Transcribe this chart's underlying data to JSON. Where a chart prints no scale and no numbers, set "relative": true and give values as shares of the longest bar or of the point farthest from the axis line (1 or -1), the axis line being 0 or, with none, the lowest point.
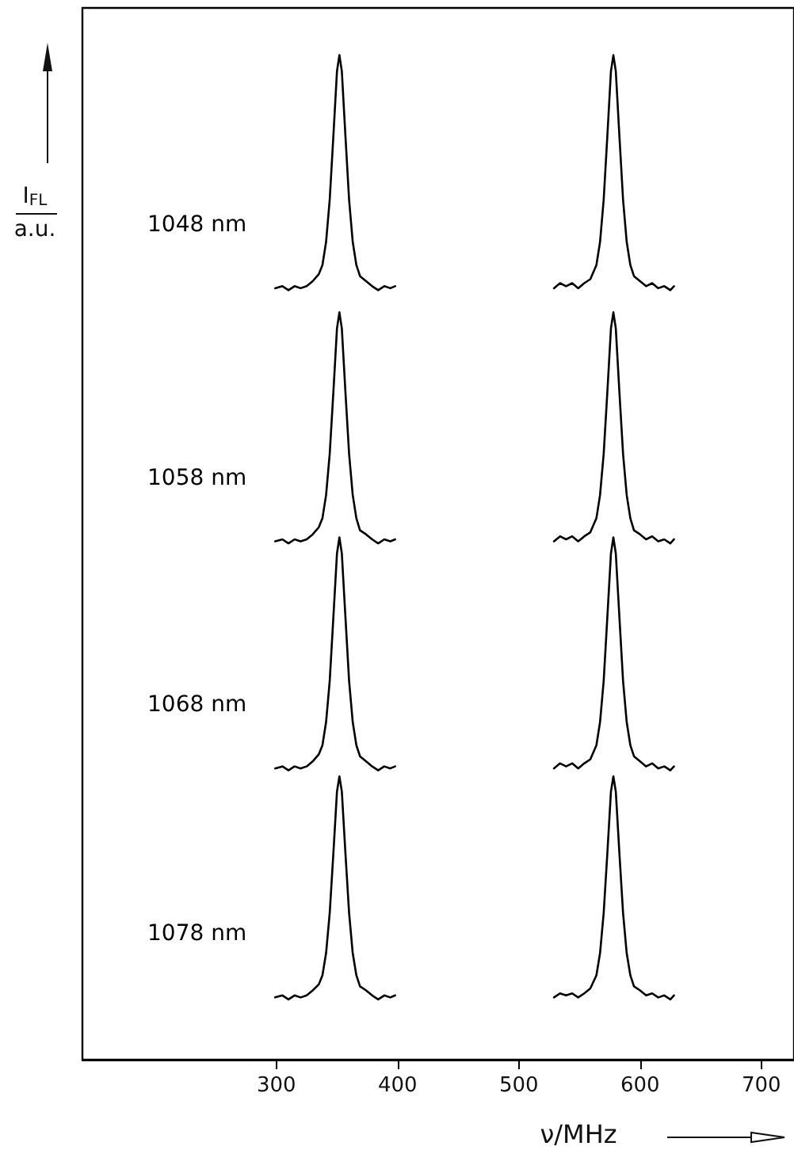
{
  "chart_data": {
    "type": "line",
    "relative": true,
    "xlabel": "ν/MHz",
    "ylabel": "I$_{FL}$ a.u.",
    "xlim": [
      140,
      727
    ],
    "xticks": [
      300,
      400,
      500,
      600,
      700
    ],
    "tick_labels": "x",
    "grid": false,
    "legend": false,
    "marker": "none",
    "line_style": "solid",
    "x": [
      299,
      305,
      310,
      315,
      320,
      325,
      330,
      335,
      338,
      341,
      344,
      347,
      350,
      352,
      354,
      357,
      360,
      363,
      366,
      369,
      374,
      379,
      384,
      389,
      394,
      398,
      460,
      529,
      534,
      539,
      544,
      549,
      554,
      559,
      564,
      567,
      570,
      573,
      576,
      578,
      580,
      583,
      586,
      589,
      592,
      595,
      600,
      605,
      610,
      615,
      620,
      625,
      628
    ],
    "series": [
      {
        "name": "1048 nm",
        "color": "#000000",
        "values": [
          0.768,
          0.77,
          0.766,
          0.77,
          0.768,
          0.77,
          0.775,
          0.782,
          0.791,
          0.814,
          0.856,
          0.919,
          0.984,
          1,
          0.984,
          0.919,
          0.856,
          0.814,
          0.791,
          0.78,
          0.775,
          0.77,
          0.766,
          0.77,
          0.768,
          0.77,
          null,
          0.768,
          0.773,
          0.77,
          0.773,
          0.768,
          0.773,
          0.777,
          0.791,
          0.814,
          0.856,
          0.919,
          0.984,
          1,
          0.984,
          0.919,
          0.856,
          0.814,
          0.791,
          0.78,
          0.775,
          0.77,
          0.773,
          0.768,
          0.77,
          0.766,
          0.77
        ]
      },
      {
        "name": "1058 nm",
        "color": "#000000",
        "values": [
          0.516,
          0.518,
          0.514,
          0.518,
          0.516,
          0.518,
          0.523,
          0.53,
          0.539,
          0.562,
          0.603,
          0.664,
          0.728,
          0.744,
          0.728,
          0.664,
          0.603,
          0.562,
          0.539,
          0.527,
          0.523,
          0.518,
          0.514,
          0.518,
          0.516,
          0.518,
          null,
          0.516,
          0.521,
          0.518,
          0.521,
          0.516,
          0.521,
          0.525,
          0.539,
          0.562,
          0.603,
          0.664,
          0.728,
          0.744,
          0.728,
          0.664,
          0.603,
          0.562,
          0.539,
          0.527,
          0.523,
          0.518,
          0.521,
          0.516,
          0.518,
          0.514,
          0.518
        ]
      },
      {
        "name": "1068 nm",
        "color": "#000000",
        "values": [
          0.29,
          0.292,
          0.288,
          0.292,
          0.29,
          0.292,
          0.297,
          0.304,
          0.313,
          0.336,
          0.377,
          0.44,
          0.504,
          0.52,
          0.504,
          0.44,
          0.377,
          0.336,
          0.313,
          0.302,
          0.297,
          0.292,
          0.288,
          0.292,
          0.29,
          0.292,
          null,
          0.29,
          0.295,
          0.292,
          0.295,
          0.29,
          0.295,
          0.299,
          0.313,
          0.336,
          0.377,
          0.44,
          0.504,
          0.52,
          0.504,
          0.44,
          0.377,
          0.336,
          0.313,
          0.302,
          0.297,
          0.292,
          0.295,
          0.29,
          0.292,
          0.288,
          0.292
        ]
      },
      {
        "name": "1078 nm",
        "color": "#000000",
        "values": [
          0.062,
          0.064,
          0.06,
          0.064,
          0.062,
          0.064,
          0.069,
          0.075,
          0.084,
          0.106,
          0.146,
          0.205,
          0.267,
          0.282,
          0.267,
          0.205,
          0.146,
          0.106,
          0.084,
          0.073,
          0.069,
          0.064,
          0.06,
          0.064,
          0.062,
          0.064,
          null,
          0.062,
          0.066,
          0.064,
          0.066,
          0.062,
          0.066,
          0.071,
          0.084,
          0.106,
          0.146,
          0.205,
          0.267,
          0.282,
          0.267,
          0.205,
          0.146,
          0.106,
          0.084,
          0.073,
          0.069,
          0.064,
          0.066,
          0.062,
          0.064,
          0.06,
          0.064
        ]
      }
    ]
  }
}
